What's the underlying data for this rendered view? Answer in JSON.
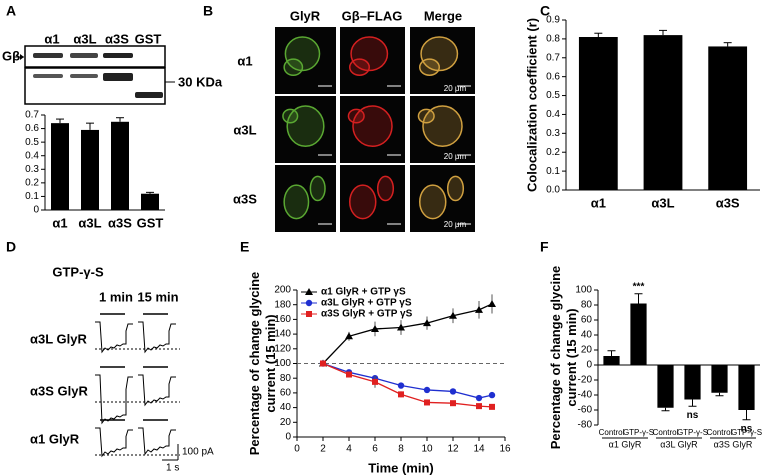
{
  "panels": {
    "letters": [
      "A",
      "B",
      "C",
      "D",
      "E",
      "F"
    ],
    "A": {
      "lanes": [
        "α1",
        "α3L",
        "α3S",
        "GST"
      ],
      "band_label": "Gβ",
      "marker": "30 KDa"
    },
    "B": {
      "columns": [
        "GlyR",
        "Gβ–FLAG",
        "Merge"
      ],
      "rows": [
        "α1",
        "α3L",
        "α3S"
      ],
      "scale": "20 μm"
    },
    "D": {
      "title": "GTP-γ-S",
      "times": [
        "1 min",
        "15 min"
      ],
      "rows": [
        "α3L GlyR",
        "α3S GlyR",
        "α1 GlyR"
      ],
      "scale_y": "100 pA",
      "scale_x": "1 s"
    }
  },
  "chart_data": [
    {
      "type": "bar",
      "categories": [
        "α1",
        "α3L",
        "α3S",
        "GST"
      ],
      "values": [
        0.64,
        0.59,
        0.65,
        0.12
      ],
      "errors": [
        0.03,
        0.05,
        0.03,
        0.01
      ],
      "color": "#000000",
      "ylim": [
        0,
        0.7
      ],
      "yticks": [
        0,
        0.1,
        0.2,
        0.3,
        0.4,
        0.5,
        0.6,
        0.7
      ]
    },
    {
      "type": "bar",
      "y_label": "Colocalization coefficient (r)",
      "categories": [
        "α1",
        "α3L",
        "α3S"
      ],
      "values": [
        0.81,
        0.82,
        0.76
      ],
      "errors": [
        0.02,
        0.025,
        0.02
      ],
      "color": "#000000",
      "ylim": [
        0,
        0.9
      ],
      "yticks": [
        {
          "value": 0,
          "label": "0.0"
        },
        0.1,
        0.2,
        0.3,
        0.4,
        0.5,
        0.6,
        0.7,
        0.8,
        0.9
      ]
    },
    {
      "type": "line",
      "y_label": "Percentage of change glycine current (15 min)",
      "x_label": "Time (min)",
      "x": [
        2,
        4,
        6,
        8,
        10,
        12,
        14,
        15
      ],
      "series": [
        {
          "name": "α1 GlyR + GTP γS",
          "color": "#000000",
          "marker": "triangle",
          "values": [
            100,
            137,
            147,
            149,
            155,
            165,
            173,
            181
          ],
          "errors": [
            0,
            6,
            10,
            10,
            9,
            10,
            12,
            13
          ]
        },
        {
          "name": "α3L GlyR + GTP γS",
          "color": "#1f2fd0",
          "marker": "circle",
          "values": [
            100,
            88,
            80,
            70,
            64,
            62,
            53,
            57
          ],
          "errors": [
            0,
            3,
            4,
            3,
            3,
            3,
            4,
            3
          ]
        },
        {
          "name": "α3S GlyR + GTP γS",
          "color": "#e02020",
          "marker": "square",
          "values": [
            100,
            85,
            75,
            58,
            47,
            46,
            42,
            41
          ],
          "errors": [
            0,
            3,
            8,
            4,
            3,
            2,
            3,
            3
          ]
        }
      ],
      "reference_line": 100,
      "xlim": [
        0,
        16
      ],
      "xticks": [
        0,
        2,
        4,
        6,
        8,
        10,
        12,
        14,
        16
      ],
      "ylim": [
        0,
        200
      ],
      "yticks": [
        0,
        20,
        40,
        60,
        80,
        100,
        120,
        140,
        160,
        180,
        200
      ],
      "legend": "top-left"
    },
    {
      "type": "bar",
      "y_label": "Percentage of change glycine current (15 min)",
      "categories": [
        "Control",
        "GTP-γ-S",
        "Control",
        "GTP-γ-S",
        "Control",
        "GTP-γ-S"
      ],
      "groups": [
        "α1 GlyR",
        "α3L GlyR",
        "α3S GlyR"
      ],
      "values": [
        12,
        82,
        -57,
        -46,
        -37,
        -60
      ],
      "errors": [
        7,
        13,
        4,
        9,
        4,
        13
      ],
      "color": "#000000",
      "annotations": [
        {
          "category": 1,
          "text": "***"
        },
        {
          "category": 3,
          "text": "ns"
        },
        {
          "category": 5,
          "text": "ns"
        }
      ],
      "ylim": [
        -80,
        100
      ],
      "yticks": [
        -80,
        -60,
        -40,
        -20,
        0,
        20,
        40,
        60,
        80,
        100
      ]
    }
  ]
}
